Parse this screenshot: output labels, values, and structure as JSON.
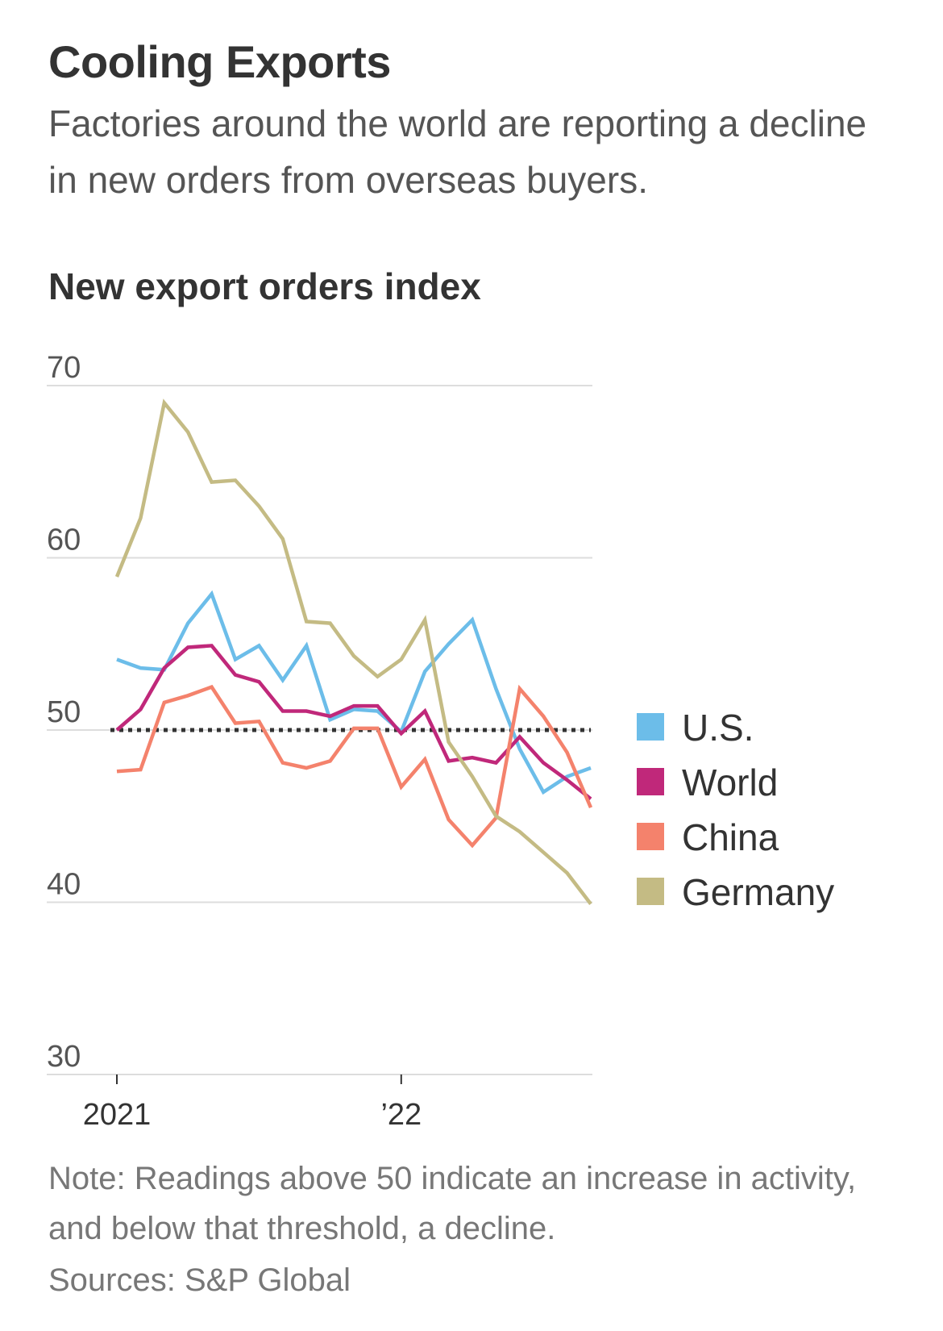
{
  "header": {
    "title": "Cooling Exports",
    "subtitle": "Factories around the world are reporting a decline in new orders from overseas buyers."
  },
  "footer": {
    "note": "Note: Readings above 50 indicate an increase in activity, and below that threshold, a decline.",
    "source": "Sources: S&P Global"
  },
  "chart_data": {
    "type": "line",
    "title": "New export orders index",
    "xlabel": "",
    "ylabel": "",
    "ylim": [
      30,
      70
    ],
    "yticks": [
      70,
      60,
      50,
      40,
      30
    ],
    "x_period": "monthly",
    "x": [
      "2021-01",
      "2021-02",
      "2021-03",
      "2021-04",
      "2021-05",
      "2021-06",
      "2021-07",
      "2021-08",
      "2021-09",
      "2021-10",
      "2021-11",
      "2021-12",
      "2022-01",
      "2022-02",
      "2022-03",
      "2022-04",
      "2022-05",
      "2022-06",
      "2022-07",
      "2022-08",
      "2022-09"
    ],
    "xtick_labels": [
      {
        "x": "2021-01",
        "label": "2021"
      },
      {
        "x": "2022-01",
        "label": "’22"
      }
    ],
    "reference_line": {
      "y": 50,
      "style": "dotted",
      "color": "#333333"
    },
    "grid": true,
    "legend_position": "right",
    "series": [
      {
        "name": "U.S.",
        "color": "#6cbde9",
        "values": [
          54.1,
          53.6,
          53.5,
          56.2,
          57.9,
          54.1,
          54.9,
          52.9,
          54.9,
          50.6,
          51.2,
          51.1,
          49.9,
          53.4,
          55.0,
          56.4,
          52.4,
          48.9,
          46.4,
          47.3,
          47.8
        ]
      },
      {
        "name": "World",
        "color": "#c0287a",
        "values": [
          50.0,
          51.2,
          53.6,
          54.8,
          54.9,
          53.2,
          52.8,
          51.1,
          51.1,
          50.8,
          51.4,
          51.4,
          49.8,
          51.1,
          48.2,
          48.4,
          48.1,
          49.6,
          48.1,
          47.1,
          46.0
        ]
      },
      {
        "name": "China",
        "color": "#f4826c",
        "values": [
          47.6,
          47.7,
          51.6,
          52.0,
          52.5,
          50.4,
          50.5,
          48.1,
          47.8,
          48.2,
          50.1,
          50.1,
          46.7,
          48.3,
          44.8,
          43.3,
          44.9,
          52.4,
          50.8,
          48.7,
          45.5
        ]
      },
      {
        "name": "Germany",
        "color": "#c4bb84",
        "values": [
          58.9,
          62.3,
          69.0,
          67.3,
          64.4,
          64.5,
          63.0,
          61.1,
          56.3,
          56.2,
          54.3,
          53.1,
          54.1,
          56.4,
          49.3,
          47.3,
          45.0,
          44.1,
          42.9,
          41.7,
          39.9
        ]
      }
    ]
  }
}
